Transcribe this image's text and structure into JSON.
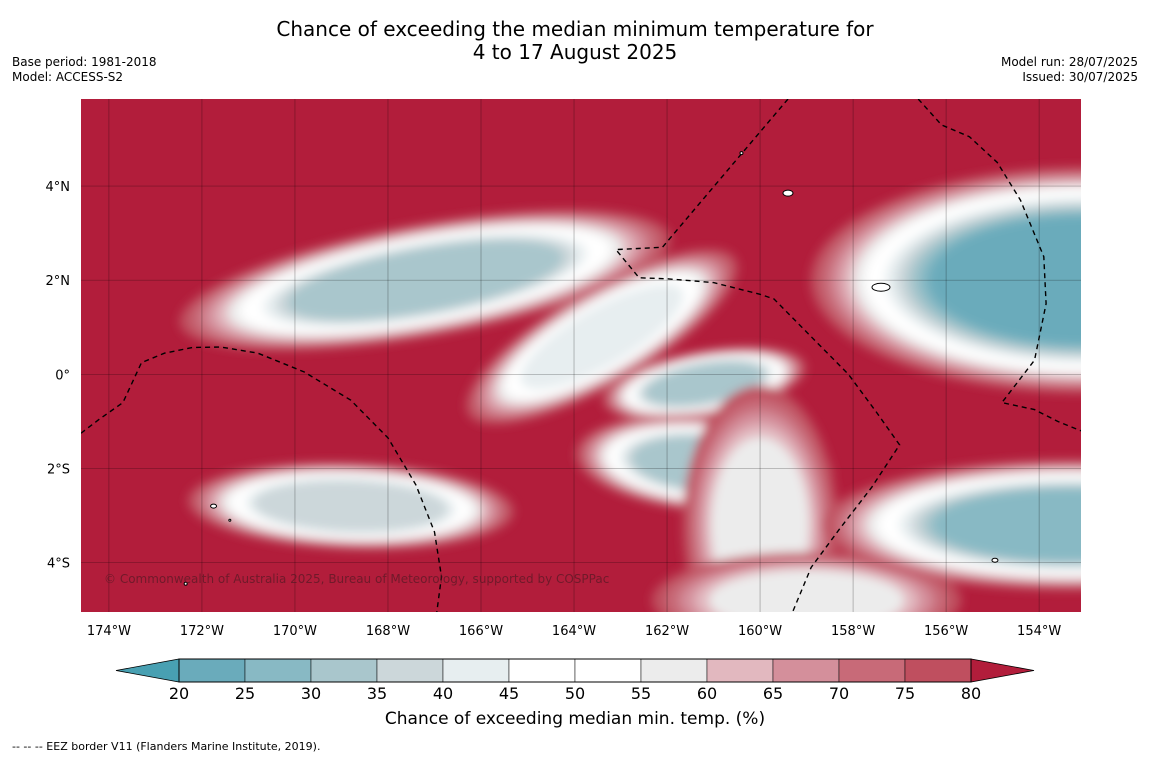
{
  "title": {
    "line1": "Chance of exceeding the median minimum temperature for",
    "line2": "4 to 17 August 2025"
  },
  "meta_left": {
    "base_period": "Base period: 1981-2018",
    "model": "Model: ACCESS-S2"
  },
  "meta_right": {
    "model_run": "Model run: 28/07/2025",
    "issued": "Issued: 30/07/2025"
  },
  "map": {
    "extent": {
      "lon_min": -174.6,
      "lon_max": -153.1,
      "lat_min": -5.05,
      "lat_max": 5.85
    },
    "lon_ticks": [
      -174,
      -172,
      -170,
      -168,
      -166,
      -164,
      -162,
      -160,
      -158,
      -156,
      -154
    ],
    "lon_tick_labels": [
      "174°W",
      "172°W",
      "170°W",
      "168°W",
      "166°W",
      "164°W",
      "162°W",
      "160°W",
      "158°W",
      "156°W",
      "154°W"
    ],
    "lat_ticks": [
      4,
      2,
      0,
      -2,
      -4
    ],
    "lat_tick_labels": [
      "4°N",
      "2°N",
      "0°",
      "2°S",
      "4°S"
    ],
    "background_value": 85,
    "features": [
      {
        "name": "northwest-band",
        "lon": -167.2,
        "lat": 2.0,
        "a_lon": 2.9,
        "a_lat": 0.65,
        "rot": -10,
        "value": 33
      },
      {
        "name": "central-band",
        "lon": -163.4,
        "lat": 0.8,
        "a_lon": 1.8,
        "a_lat": 0.55,
        "rot": -30,
        "value": 40
      },
      {
        "name": "equator-spot",
        "lon": -161.2,
        "lat": -0.2,
        "a_lon": 1.2,
        "a_lat": 0.38,
        "rot": -10,
        "value": 30
      },
      {
        "name": "south-central-band",
        "lon": -161.2,
        "lat": -1.9,
        "a_lon": 1.5,
        "a_lat": 0.55,
        "rot": 5,
        "value": 33
      },
      {
        "name": "southwest-band",
        "lon": -168.8,
        "lat": -2.8,
        "a_lon": 1.9,
        "a_lat": 0.5,
        "rot": 2,
        "value": 35
      },
      {
        "name": "south-lobe",
        "lon": -160.0,
        "lat": -3.2,
        "a_lon": 0.9,
        "a_lat": 1.6,
        "rot": 0,
        "value": 55
      },
      {
        "name": "far-south-lobe",
        "lon": -159.0,
        "lat": -4.8,
        "a_lon": 1.8,
        "a_lat": 0.55,
        "rot": 0,
        "value": 55
      },
      {
        "name": "northeast-blob",
        "lon": -153.0,
        "lat": 2.0,
        "a_lon": 3.2,
        "a_lat": 1.3,
        "rot": 0,
        "value": 21
      },
      {
        "name": "southeast-blob",
        "lon": -153.3,
        "lat": -3.2,
        "a_lon": 2.9,
        "a_lat": 0.75,
        "rot": 0,
        "value": 28
      }
    ],
    "eez_borders": [
      [
        [
          -174.6,
          -1.25
        ],
        [
          -174.2,
          -0.95
        ],
        [
          -173.7,
          -0.6
        ],
        [
          -173.3,
          0.25
        ],
        [
          -172.8,
          0.45
        ],
        [
          -172.2,
          0.57
        ],
        [
          -171.6,
          0.58
        ],
        [
          -170.8,
          0.45
        ],
        [
          -169.8,
          0.05
        ],
        [
          -168.8,
          -0.55
        ],
        [
          -168.0,
          -1.35
        ],
        [
          -167.4,
          -2.35
        ],
        [
          -167.0,
          -3.35
        ],
        [
          -166.85,
          -4.3
        ],
        [
          -166.95,
          -5.05
        ]
      ],
      [
        [
          -159.4,
          5.85
        ],
        [
          -160.3,
          4.8
        ],
        [
          -161.2,
          3.75
        ],
        [
          -162.1,
          2.7
        ],
        [
          -163.1,
          2.65
        ],
        [
          -162.6,
          2.05
        ],
        [
          -162.0,
          2.03
        ],
        [
          -161.0,
          1.95
        ],
        [
          -160.0,
          1.7
        ],
        [
          -159.7,
          1.6
        ],
        [
          -158.9,
          0.8
        ],
        [
          -158.1,
          0.0
        ],
        [
          -157.5,
          -0.8
        ],
        [
          -157.0,
          -1.5
        ],
        [
          -157.6,
          -2.4
        ],
        [
          -158.3,
          -3.3
        ],
        [
          -158.9,
          -4.1
        ],
        [
          -159.3,
          -5.05
        ]
      ],
      [
        [
          -156.6,
          5.85
        ],
        [
          -156.1,
          5.3
        ],
        [
          -155.5,
          5.05
        ],
        [
          -154.9,
          4.5
        ],
        [
          -154.4,
          3.7
        ],
        [
          -153.9,
          2.5
        ],
        [
          -153.85,
          1.5
        ],
        [
          -154.1,
          0.3
        ],
        [
          -154.8,
          -0.6
        ],
        [
          -154.1,
          -0.75
        ],
        [
          -153.6,
          -1.0
        ],
        [
          -153.1,
          -1.2
        ]
      ]
    ],
    "islands": [
      {
        "lon": -159.4,
        "lat": 3.85,
        "rx": 5,
        "ry": 3
      },
      {
        "lon": -157.4,
        "lat": 1.85,
        "rx": 9,
        "ry": 4
      },
      {
        "lon": -171.75,
        "lat": -2.8,
        "rx": 3,
        "ry": 2
      },
      {
        "lon": -154.95,
        "lat": -3.95,
        "rx": 3,
        "ry": 2
      },
      {
        "lon": -160.4,
        "lat": 4.7,
        "rx": 1.5,
        "ry": 1.5
      },
      {
        "lon": -171.4,
        "lat": -3.1,
        "rx": 1,
        "ry": 1
      },
      {
        "lon": -172.35,
        "lat": -4.45,
        "rx": 1.5,
        "ry": 1.5
      }
    ],
    "copyright": "© Commonwealth of Australia 2025, Bureau of Meteorology, supported by COSPPac"
  },
  "colorbar": {
    "levels": [
      20,
      25,
      30,
      35,
      40,
      45,
      50,
      55,
      60,
      65,
      70,
      75,
      80
    ],
    "colors": [
      "#6aabbb",
      "#88b9c4",
      "#a9c6cc",
      "#ccd7da",
      "#e7eef0",
      "#ffffff",
      "#ffffff",
      "#ececec",
      "#e2b8bf",
      "#d48f9b",
      "#c86a78",
      "#bf4f5f"
    ],
    "under_color": "#48a0b2",
    "over_color": "#b21d3b",
    "label": "Chance of exceeding median min. temp. (%)"
  },
  "footnote": "--  --  -- EEZ border V11 (Flanders Marine Institute, 2019)."
}
